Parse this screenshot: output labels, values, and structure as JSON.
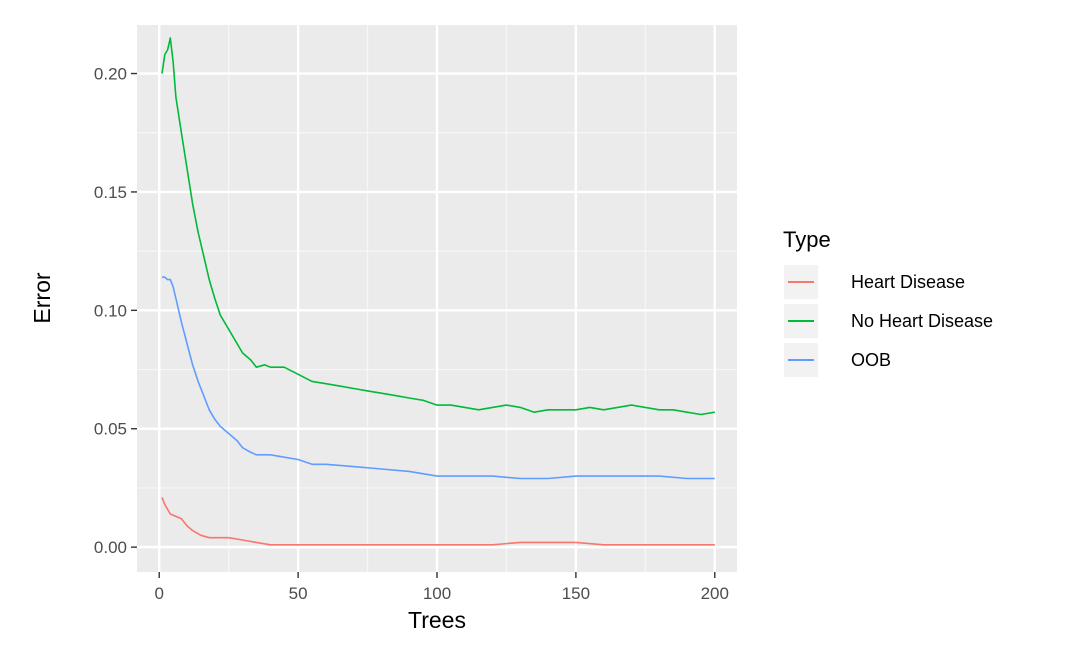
{
  "chart_data": {
    "type": "line",
    "xlabel": "Trees",
    "ylabel": "Error",
    "xlim": [
      -8,
      208
    ],
    "ylim": [
      -0.0105,
      0.2205
    ],
    "x_ticks": [
      0,
      50,
      100,
      150,
      200
    ],
    "x_tick_labels": [
      "0",
      "50",
      "100",
      "150",
      "200"
    ],
    "y_ticks": [
      0.0,
      0.05,
      0.1,
      0.15,
      0.2
    ],
    "y_tick_labels": [
      "0.00",
      "0.05",
      "0.10",
      "0.15",
      "0.20"
    ],
    "grid": true,
    "background": "#ebebeb",
    "legend": {
      "title": "Type",
      "position": "right"
    },
    "series": [
      {
        "name": "Heart Disease",
        "color": "#f8766d",
        "x": [
          1,
          2,
          4,
          6,
          8,
          10,
          12,
          15,
          18,
          20,
          25,
          30,
          35,
          40,
          50,
          60,
          80,
          100,
          120,
          130,
          140,
          150,
          160,
          170,
          180,
          190,
          200
        ],
        "y": [
          0.021,
          0.018,
          0.014,
          0.013,
          0.012,
          0.009,
          0.007,
          0.005,
          0.004,
          0.004,
          0.004,
          0.003,
          0.002,
          0.001,
          0.001,
          0.001,
          0.001,
          0.001,
          0.001,
          0.002,
          0.002,
          0.002,
          0.001,
          0.001,
          0.001,
          0.001,
          0.001
        ]
      },
      {
        "name": "No Heart Disease",
        "color": "#00ba38",
        "x": [
          1,
          2,
          3,
          4,
          5,
          6,
          8,
          10,
          12,
          14,
          16,
          18,
          20,
          22,
          25,
          28,
          30,
          33,
          35,
          38,
          40,
          45,
          50,
          55,
          60,
          65,
          70,
          75,
          80,
          85,
          90,
          95,
          100,
          105,
          110,
          115,
          120,
          125,
          130,
          135,
          140,
          145,
          150,
          155,
          160,
          165,
          170,
          175,
          180,
          185,
          190,
          195,
          200
        ],
        "y": [
          0.2,
          0.208,
          0.21,
          0.215,
          0.205,
          0.19,
          0.175,
          0.16,
          0.145,
          0.133,
          0.123,
          0.113,
          0.105,
          0.098,
          0.092,
          0.086,
          0.082,
          0.079,
          0.076,
          0.077,
          0.076,
          0.076,
          0.073,
          0.07,
          0.069,
          0.068,
          0.067,
          0.066,
          0.065,
          0.064,
          0.063,
          0.062,
          0.06,
          0.06,
          0.059,
          0.058,
          0.059,
          0.06,
          0.059,
          0.057,
          0.058,
          0.058,
          0.058,
          0.059,
          0.058,
          0.059,
          0.06,
          0.059,
          0.058,
          0.058,
          0.057,
          0.056,
          0.057
        ]
      },
      {
        "name": "OOB",
        "color": "#619cff",
        "x": [
          1,
          2,
          3,
          4,
          5,
          6,
          8,
          10,
          12,
          14,
          16,
          18,
          20,
          22,
          25,
          28,
          30,
          33,
          35,
          40,
          45,
          50,
          55,
          60,
          70,
          80,
          90,
          100,
          110,
          120,
          130,
          140,
          150,
          160,
          170,
          180,
          190,
          200
        ],
        "y": [
          0.114,
          0.114,
          0.113,
          0.113,
          0.11,
          0.105,
          0.095,
          0.086,
          0.077,
          0.07,
          0.064,
          0.058,
          0.054,
          0.051,
          0.048,
          0.045,
          0.042,
          0.04,
          0.039,
          0.039,
          0.038,
          0.037,
          0.035,
          0.035,
          0.034,
          0.033,
          0.032,
          0.03,
          0.03,
          0.03,
          0.029,
          0.029,
          0.03,
          0.03,
          0.03,
          0.03,
          0.029,
          0.029
        ]
      }
    ]
  }
}
